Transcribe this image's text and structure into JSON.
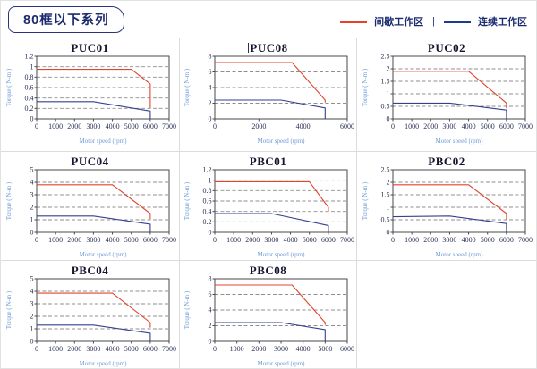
{
  "header": {
    "badge": "80框以下系列",
    "legend": {
      "separator": "|",
      "items": [
        {
          "label": "间歇工作区",
          "color": "#e8402a"
        },
        {
          "label": "连续工作区",
          "color": "#1e3a8c"
        }
      ]
    }
  },
  "chart_data": [
    {
      "type": "line",
      "title": "PUC01",
      "caret": false,
      "xlabel": "Motor speed (rpm)",
      "ylabel": "Torque ( N-m )",
      "xlim": [
        0,
        7000
      ],
      "ylim": [
        0,
        1.2
      ],
      "xticks": [
        0,
        1000,
        2000,
        3000,
        4000,
        5000,
        6000,
        7000
      ],
      "yticks": [
        0,
        0.2,
        0.4,
        0.6,
        0.8,
        1,
        1.2
      ],
      "grid": "horizontal-dashed",
      "legend_position": "none",
      "series": [
        {
          "name": "间歇工作区",
          "color": "#e0452f",
          "x": [
            0,
            5000,
            6000,
            6000
          ],
          "y": [
            0.95,
            0.95,
            0.67,
            0.2
          ]
        },
        {
          "name": "连续工作区",
          "color": "#33418f",
          "x": [
            0,
            3000,
            6000,
            6000
          ],
          "y": [
            0.33,
            0.33,
            0.15,
            0
          ]
        }
      ]
    },
    {
      "type": "line",
      "title": "PUC08",
      "caret": true,
      "xlabel": "Motor speed (rpm)",
      "ylabel": "Torque ( N-m )",
      "xlim": [
        0,
        6000
      ],
      "ylim": [
        0,
        8
      ],
      "xticks": [
        0,
        2000,
        4000,
        6000
      ],
      "yticks": [
        0,
        2,
        4,
        6,
        8
      ],
      "grid": "horizontal-dashed",
      "legend_position": "none",
      "series": [
        {
          "name": "间歇工作区",
          "color": "#e0452f",
          "x": [
            0,
            3500,
            5000,
            5000
          ],
          "y": [
            7.2,
            7.2,
            2.4,
            2.1
          ]
        },
        {
          "name": "连续工作区",
          "color": "#33418f",
          "x": [
            0,
            3000,
            5000,
            5000
          ],
          "y": [
            2.4,
            2.4,
            1.4,
            0
          ]
        }
      ]
    },
    {
      "type": "line",
      "title": "PUC02",
      "caret": false,
      "xlabel": "Motor speed (rpm)",
      "ylabel": "Torque ( N-m )",
      "xlim": [
        0,
        7000
      ],
      "ylim": [
        0,
        2.5
      ],
      "xticks": [
        0,
        1000,
        2000,
        3000,
        4000,
        5000,
        6000,
        7000
      ],
      "yticks": [
        0,
        0.5,
        1,
        1.5,
        2,
        2.5
      ],
      "grid": "horizontal-dashed",
      "legend_position": "none",
      "series": [
        {
          "name": "间歇工作区",
          "color": "#e0452f",
          "x": [
            0,
            4000,
            6000,
            6000
          ],
          "y": [
            1.9,
            1.9,
            0.63,
            0.42
          ]
        },
        {
          "name": "连续工作区",
          "color": "#33418f",
          "x": [
            0,
            3000,
            6000,
            6000
          ],
          "y": [
            0.63,
            0.63,
            0.35,
            0
          ]
        }
      ]
    },
    {
      "type": "line",
      "title": "PUC04",
      "caret": false,
      "xlabel": "Motor speed (rpm)",
      "ylabel": "Torque ( N-m )",
      "xlim": [
        0,
        7000
      ],
      "ylim": [
        0,
        5
      ],
      "xticks": [
        0,
        1000,
        2000,
        3000,
        4000,
        5000,
        6000,
        7000
      ],
      "yticks": [
        0,
        1,
        2,
        3,
        4,
        5
      ],
      "grid": "horizontal-dashed",
      "legend_position": "none",
      "series": [
        {
          "name": "间歇工作区",
          "color": "#e0452f",
          "x": [
            0,
            4000,
            6000,
            6000
          ],
          "y": [
            3.8,
            3.8,
            1.5,
            1.05
          ]
        },
        {
          "name": "连续工作区",
          "color": "#33418f",
          "x": [
            0,
            3000,
            6000,
            6000
          ],
          "y": [
            1.3,
            1.3,
            0.65,
            0
          ]
        }
      ]
    },
    {
      "type": "line",
      "title": "PBC01",
      "caret": false,
      "xlabel": "Motor speed (rpm)",
      "ylabel": "Torque ( N-m )",
      "xlim": [
        0,
        7000
      ],
      "ylim": [
        0,
        1.2
      ],
      "xticks": [
        0,
        1000,
        2000,
        3000,
        4000,
        5000,
        6000,
        7000
      ],
      "yticks": [
        0,
        0.2,
        0.4,
        0.6,
        0.8,
        1,
        1.2
      ],
      "grid": "horizontal-dashed",
      "legend_position": "none",
      "series": [
        {
          "name": "间歇工作区",
          "color": "#e0452f",
          "x": [
            0,
            5000,
            6000,
            6000
          ],
          "y": [
            0.97,
            0.97,
            0.48,
            0.4
          ]
        },
        {
          "name": "连续工作区",
          "color": "#33418f",
          "x": [
            0,
            3000,
            6000,
            6000
          ],
          "y": [
            0.36,
            0.36,
            0.13,
            0
          ]
        }
      ]
    },
    {
      "type": "line",
      "title": "PBC02",
      "caret": false,
      "xlabel": "Motor speed (rpm)",
      "ylabel": "Torque ( N-m )",
      "xlim": [
        0,
        7000
      ],
      "ylim": [
        0,
        2.5
      ],
      "xticks": [
        0,
        1000,
        2000,
        3000,
        4000,
        5000,
        6000,
        7000
      ],
      "yticks": [
        0,
        0.5,
        1,
        1.5,
        2,
        2.5
      ],
      "grid": "horizontal-dashed",
      "legend_position": "none",
      "series": [
        {
          "name": "间歇工作区",
          "color": "#e0452f",
          "x": [
            0,
            4000,
            6000,
            6000
          ],
          "y": [
            1.9,
            1.9,
            0.75,
            0.5
          ]
        },
        {
          "name": "连续工作区",
          "color": "#33418f",
          "x": [
            0,
            3000,
            6000,
            6000
          ],
          "y": [
            0.62,
            0.65,
            0.35,
            0
          ]
        }
      ]
    },
    {
      "type": "line",
      "title": "PBC04",
      "caret": false,
      "xlabel": "Motor speed (rpm)",
      "ylabel": "Torque ( N-m )",
      "xlim": [
        0,
        7000
      ],
      "ylim": [
        0,
        5
      ],
      "xticks": [
        0,
        1000,
        2000,
        3000,
        4000,
        5000,
        6000,
        7000
      ],
      "yticks": [
        0,
        1,
        2,
        3,
        4,
        5
      ],
      "grid": "horizontal-dashed",
      "legend_position": "none",
      "series": [
        {
          "name": "间歇工作区",
          "color": "#e0452f",
          "x": [
            0,
            4000,
            6000,
            6000
          ],
          "y": [
            3.85,
            3.85,
            1.5,
            1.1
          ]
        },
        {
          "name": "连续工作区",
          "color": "#33418f",
          "x": [
            0,
            3000,
            6000,
            6000
          ],
          "y": [
            1.3,
            1.3,
            0.65,
            0
          ]
        }
      ]
    },
    {
      "type": "line",
      "title": "PBC08",
      "caret": false,
      "xlabel": "Motor speed (rpm)",
      "ylabel": "Torque ( N-m )",
      "xlim": [
        0,
        6000
      ],
      "ylim": [
        0,
        8
      ],
      "xticks": [
        0,
        1000,
        2000,
        3000,
        4000,
        5000,
        6000
      ],
      "yticks": [
        0,
        2,
        4,
        6,
        8
      ],
      "grid": "horizontal-dashed",
      "legend_position": "none",
      "series": [
        {
          "name": "间歇工作区",
          "color": "#e0452f",
          "x": [
            0,
            3500,
            5000,
            5000
          ],
          "y": [
            7.2,
            7.2,
            2.4,
            2.1
          ]
        },
        {
          "name": "连续工作区",
          "color": "#33418f",
          "x": [
            0,
            3000,
            5000,
            5000
          ],
          "y": [
            2.4,
            2.4,
            1.5,
            0
          ]
        }
      ]
    }
  ]
}
